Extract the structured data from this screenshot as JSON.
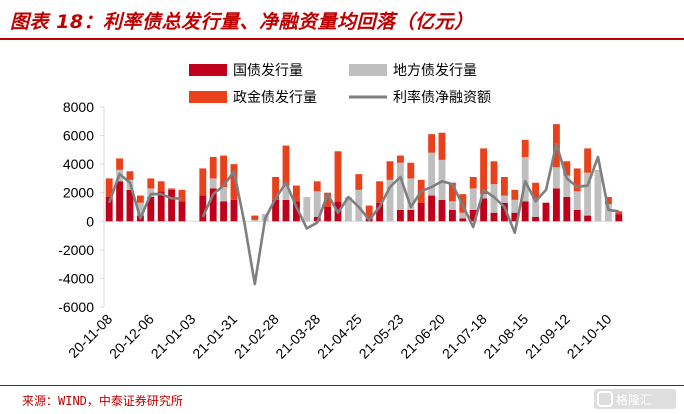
{
  "title": "图表 18：利率债总发行量、净融资量均回落（亿元）",
  "source": "来源：WIND，中泰证券研究所",
  "watermark": {
    "text": "格隆汇"
  },
  "colors": {
    "title": "#c00000",
    "govt": "#c0001a",
    "local": "#bfbfbf",
    "policy": "#e8411b",
    "net": "#7f7f7f"
  },
  "chart_data": {
    "type": "bar",
    "stacked": true,
    "title": "",
    "xlabel": "",
    "ylabel": "",
    "ylim": [
      -6000,
      8000
    ],
    "yticks": [
      -6000,
      -4000,
      -2000,
      0,
      2000,
      4000,
      6000,
      8000
    ],
    "x_tick_labels": [
      "20-11-08",
      "20-12-06",
      "21-01-03",
      "21-01-31",
      "21-02-28",
      "21-03-28",
      "21-04-25",
      "21-05-23",
      "21-06-20",
      "21-07-18",
      "21-08-15",
      "21-09-12",
      "21-10-10"
    ],
    "legend": {
      "placement": "top",
      "columns": 2
    },
    "grid": false,
    "series": [
      {
        "name": "国债发行量",
        "kind": "bar",
        "values": [
          1700,
          2800,
          2200,
          400,
          1700,
          2100,
          2200,
          1400,
          0,
          1800,
          2300,
          1400,
          1500,
          0,
          0,
          0,
          1500,
          1500,
          1400,
          0,
          300,
          1000,
          1400,
          0,
          0,
          200,
          1300,
          0,
          800,
          800,
          1300,
          1800,
          1500,
          800,
          200,
          800,
          1600,
          600,
          1300,
          600,
          1400,
          300,
          1300,
          2300,
          1700,
          800,
          400,
          0,
          0,
          500
        ]
      },
      {
        "name": "地方债发行量",
        "kind": "bar",
        "values": [
          0,
          800,
          700,
          900,
          600,
          0,
          0,
          0,
          0,
          0,
          700,
          1000,
          0,
          0,
          100,
          500,
          0,
          1000,
          0,
          1700,
          1800,
          0,
          0,
          1700,
          2200,
          0,
          0,
          2900,
          3300,
          2200,
          0,
          3000,
          2800,
          600,
          400,
          1500,
          300,
          2000,
          500,
          900,
          3100,
          1300,
          0,
          1500,
          1500,
          1300,
          3000,
          3600,
          1200,
          0
        ]
      },
      {
        "name": "政金债发行量",
        "kind": "bar",
        "values": [
          1300,
          800,
          600,
          500,
          700,
          700,
          100,
          800,
          0,
          1900,
          1500,
          2200,
          2500,
          0,
          300,
          0,
          1600,
          2800,
          1100,
          0,
          700,
          1000,
          3500,
          0,
          1100,
          900,
          1500,
          1300,
          500,
          1100,
          1600,
          1300,
          1900,
          1300,
          1300,
          800,
          3200,
          1600,
          1300,
          700,
          1200,
          1100,
          0,
          3000,
          1000,
          1600,
          1700,
          0,
          500,
          200
        ]
      },
      {
        "name": "利率债净融资额",
        "kind": "line",
        "values": [
          1300,
          3300,
          2700,
          200,
          1900,
          1900,
          1600,
          1600,
          null,
          300,
          1900,
          2500,
          3500,
          -100,
          -4400,
          200,
          1600,
          2700,
          1000,
          -500,
          -100,
          1900,
          600,
          1700,
          1000,
          100,
          1000,
          2400,
          3100,
          1000,
          2100,
          2400,
          2800,
          2600,
          1100,
          -400,
          2200,
          1700,
          1000,
          -800,
          2800,
          1400,
          2200,
          5400,
          3000,
          2400,
          2500,
          4500,
          800,
          700
        ]
      }
    ]
  }
}
